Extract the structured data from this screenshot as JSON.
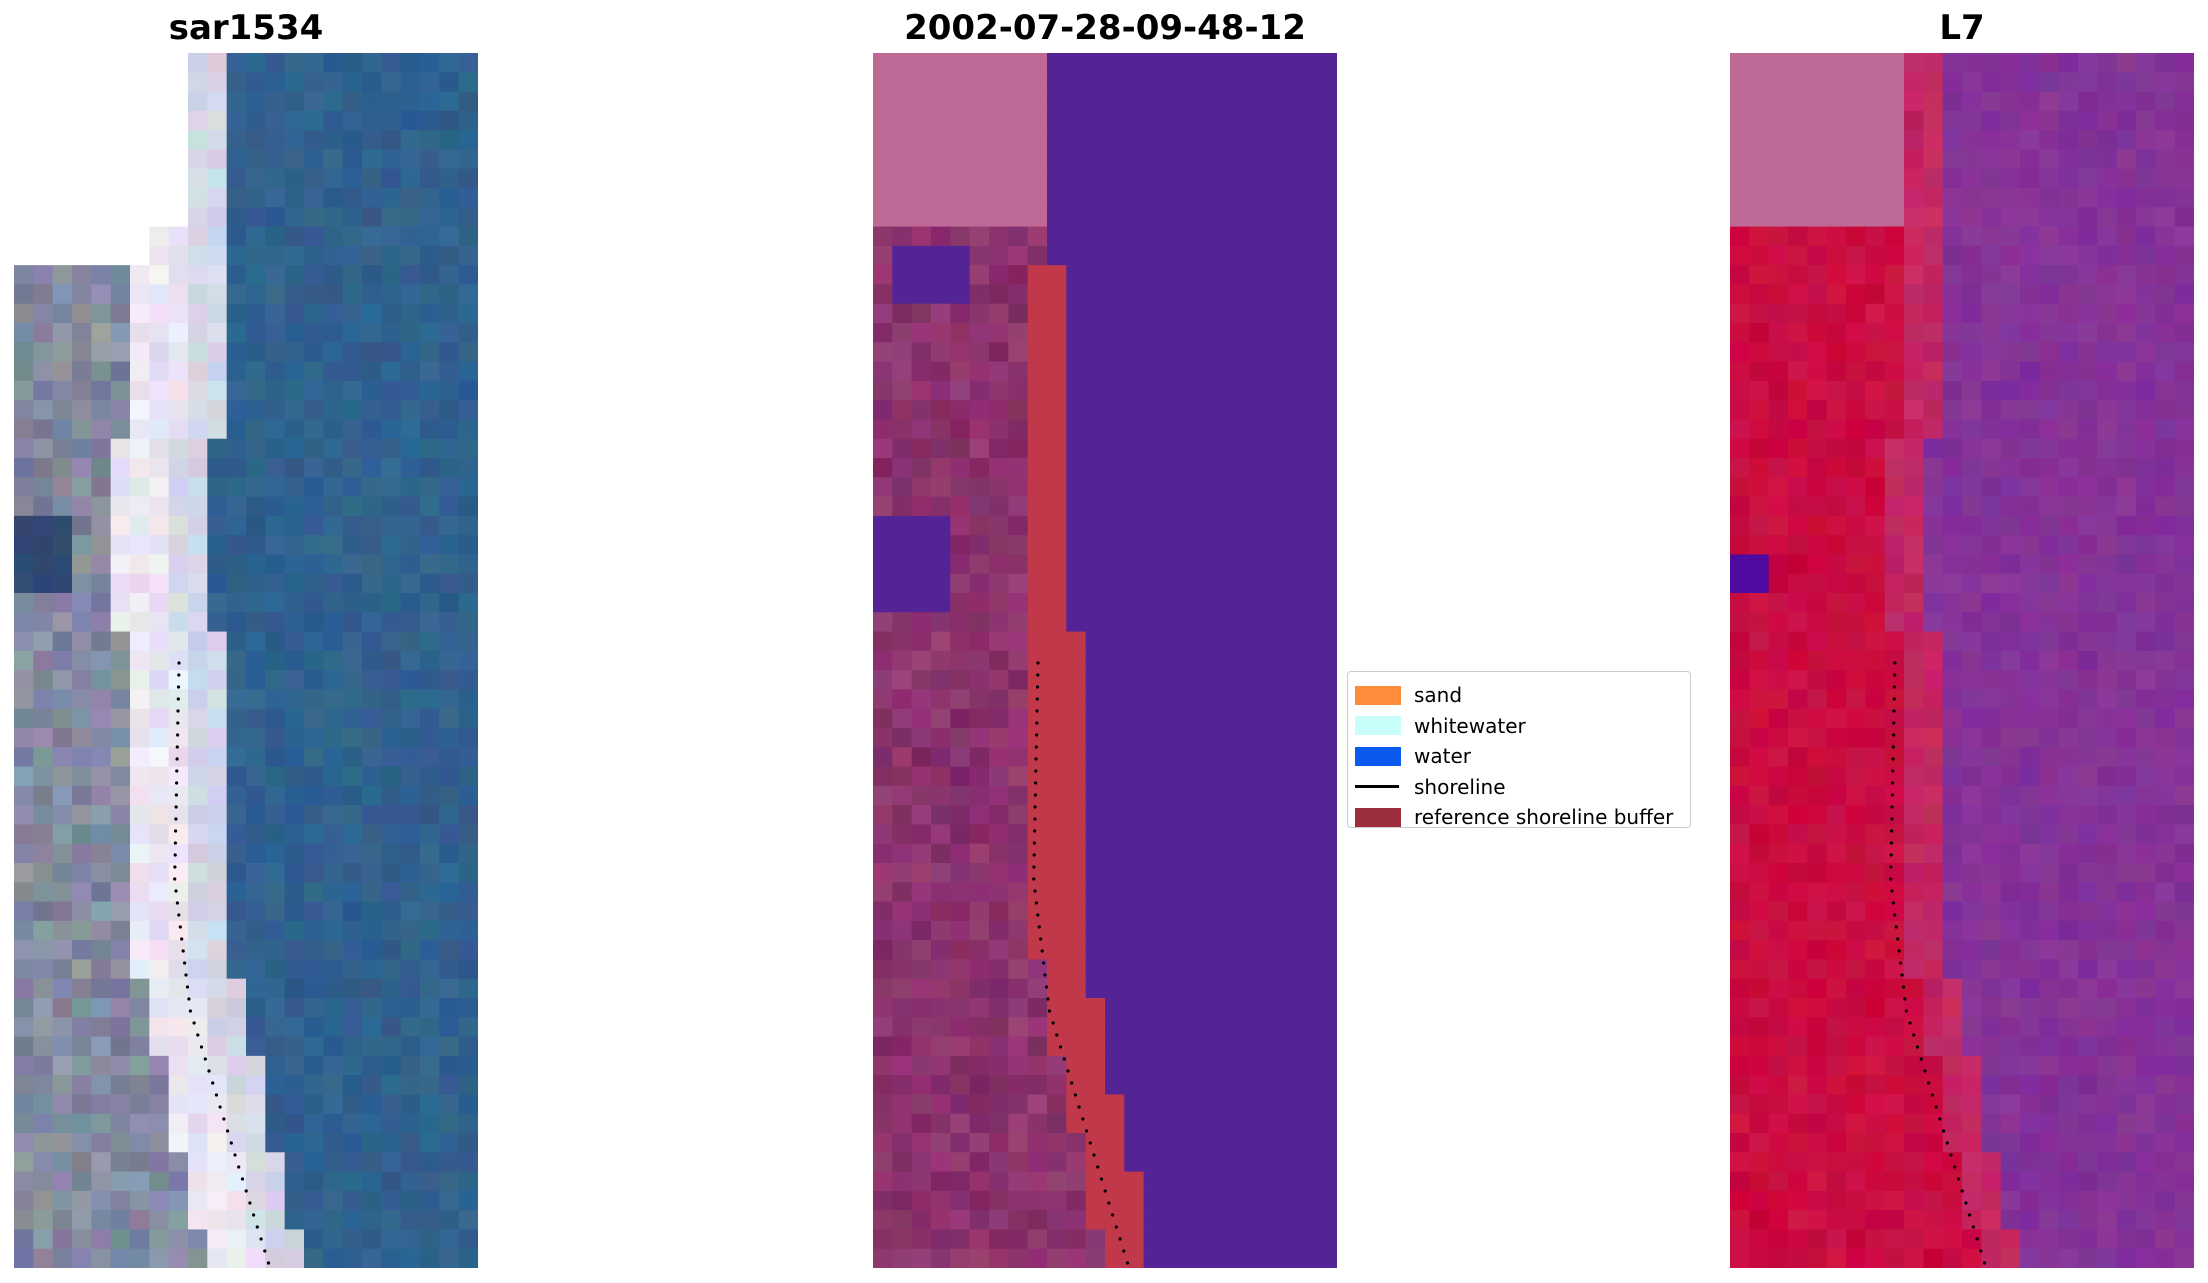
{
  "panels": [
    {
      "title": "sar1534",
      "kind": "rgb"
    },
    {
      "title": "2002-07-28-09-48-12",
      "kind": "classified"
    },
    {
      "title": "L7",
      "kind": "falsecolor"
    }
  ],
  "legend": {
    "items": [
      {
        "label": "sand",
        "type": "patch",
        "color": "#ff8c3a"
      },
      {
        "label": "whitewater",
        "type": "patch",
        "color": "#c8fffa"
      },
      {
        "label": "water",
        "type": "patch",
        "color": "#0a5af0"
      },
      {
        "label": "shoreline",
        "type": "line",
        "color": "#000000"
      },
      {
        "label": "reference shoreline buffer",
        "type": "patch",
        "color": "#9b2d3c"
      }
    ]
  },
  "colors": {
    "ocean_rgb": "#2f5e8c",
    "sand_rgb": "#f3eef6",
    "nodata_pink": "#bf6996",
    "water_purple": "#542496",
    "buffer_red": "#c0384a",
    "land_magenta": "#7f2a63",
    "fc_red": "#c8063a",
    "fc_purple": "#8a3596"
  }
}
